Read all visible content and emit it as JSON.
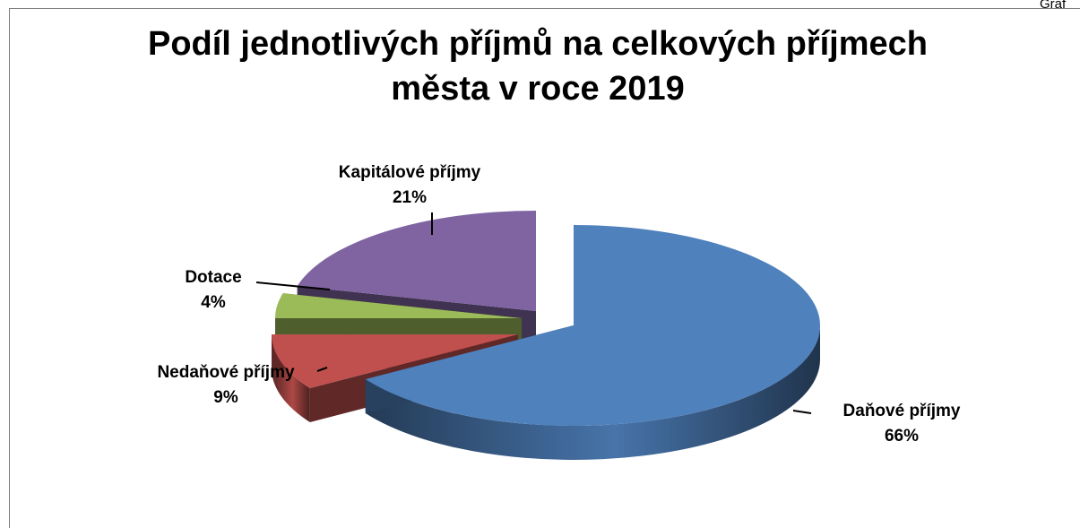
{
  "corner_label": "Graf",
  "chart_data": {
    "type": "pie",
    "title_lines": [
      "Podíl jednotlivých příjmů na celkových příjmech",
      "města v roce 2019"
    ],
    "categories": [
      "Daňové příjmy",
      "Nedaňové příjmy",
      "Dotace",
      "Kapitálové příjmy"
    ],
    "values": [
      66,
      9,
      4,
      21
    ],
    "value_labels": [
      "66%",
      "9%",
      "4%",
      "21%"
    ],
    "colors": [
      "#4f81bd",
      "#c0504d",
      "#9bbb59",
      "#8064a2"
    ],
    "exploded": true,
    "three_d": true,
    "legend": "none"
  }
}
